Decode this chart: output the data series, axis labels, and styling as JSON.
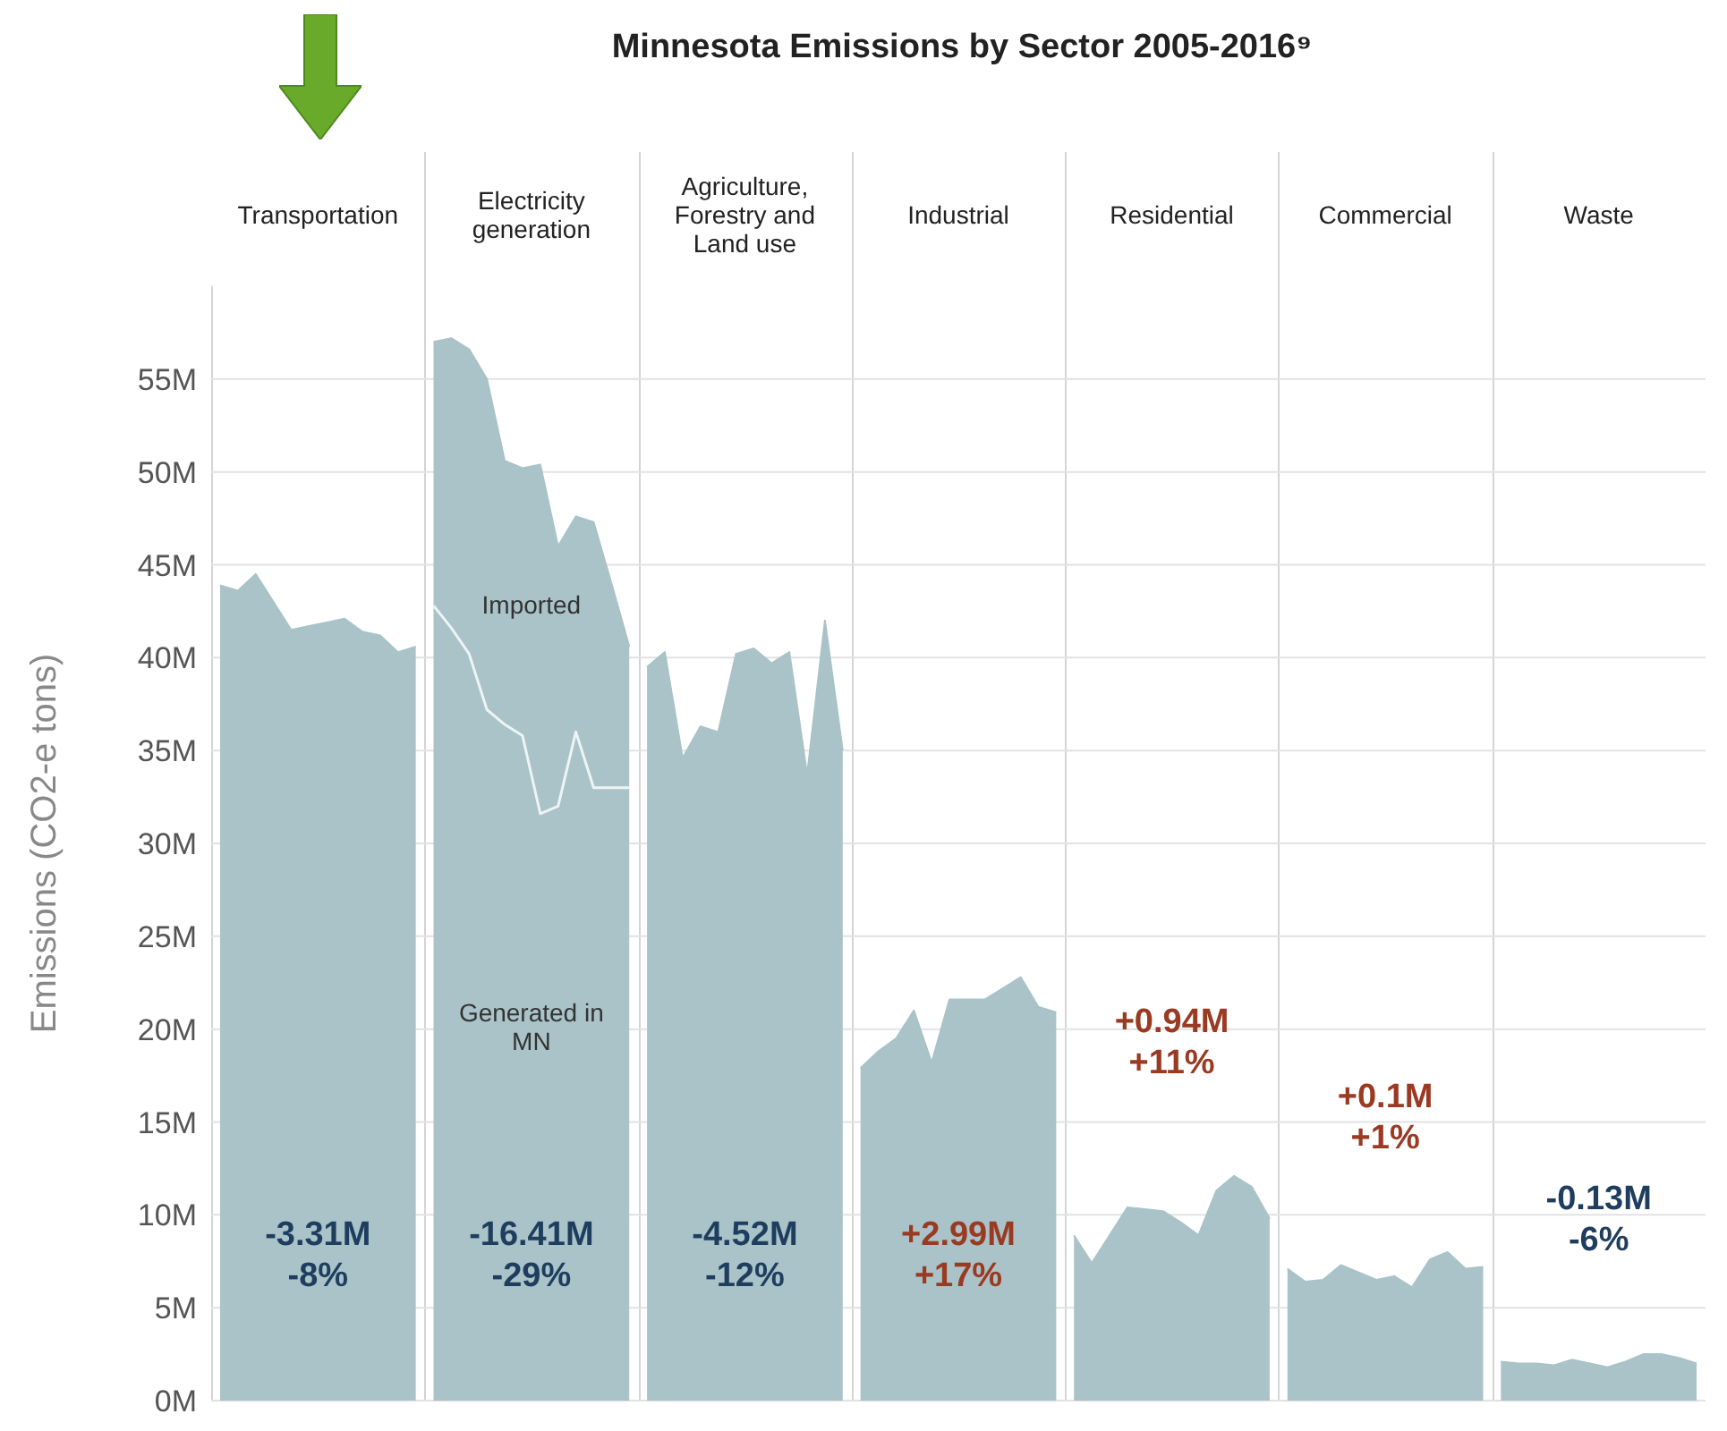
{
  "chart_data": {
    "type": "area",
    "title": "Minnesota Emissions by Sector 2005-2016⁹",
    "ylabel": "Emissions (CO2-e tons)",
    "categories": [
      null,
      null,
      null,
      null,
      null,
      null,
      null,
      null,
      null,
      null,
      null,
      null,
      null,
      null,
      null,
      null,
      null,
      null,
      null,
      null,
      null,
      null,
      null,
      null,
      null,
      null,
      null,
      null,
      null,
      null,
      null,
      null,
      null,
      null,
      null,
      null,
      null,
      null,
      null,
      null,
      null,
      null,
      null,
      null,
      null,
      null,
      null,
      null,
      null,
      null,
      null,
      null,
      null,
      null,
      null,
      null,
      null,
      null,
      null,
      null,
      null,
      null,
      null,
      null,
      null,
      null,
      null,
      null,
      null,
      null,
      null,
      null,
      null,
      null,
      null,
      null,
      null,
      null,
      null,
      null,
      null,
      null,
      null,
      null
    ],
    "ylim": [
      0,
      60
    ],
    "yticks": [
      {
        "value": 0,
        "label": "0M"
      },
      {
        "value": 5,
        "label": "5M"
      },
      {
        "value": 10,
        "label": "10M"
      },
      {
        "value": 15,
        "label": "15M"
      },
      {
        "value": 20,
        "label": "20M"
      },
      {
        "value": 25,
        "label": "25M"
      },
      {
        "value": 30,
        "label": "30M"
      },
      {
        "value": 35,
        "label": "35M"
      },
      {
        "value": 40,
        "label": "40M"
      },
      {
        "value": 45,
        "label": "45M"
      },
      {
        "value": 50,
        "label": "50M"
      },
      {
        "value": 55,
        "label": "55M"
      }
    ],
    "grid": "y",
    "tick_labels": "y",
    "series": [
      {
        "color": "#a9c3c8",
        "values": [
          43.9,
          43.6,
          44.5,
          43,
          41.5,
          41.7,
          41.9,
          42.1,
          41.4,
          41.2,
          40.3,
          40.6,
          null,
          null,
          null,
          null,
          null,
          null,
          null,
          null,
          null,
          null,
          null,
          null,
          null,
          null,
          null,
          null,
          null,
          null,
          null,
          null,
          null,
          null,
          null,
          null,
          null,
          null,
          null,
          null,
          null,
          null,
          null,
          null,
          null,
          null,
          null,
          null,
          null,
          null,
          null,
          null,
          null,
          null,
          null,
          null,
          null,
          null,
          null,
          null,
          null,
          null,
          null,
          null,
          null,
          null,
          null,
          null,
          null,
          null,
          null,
          null,
          null,
          null,
          null,
          null,
          null,
          null,
          null,
          null,
          null,
          null,
          null,
          null
        ]
      },
      {
        "color": "#a9c3c8",
        "values": [
          null,
          null,
          null,
          null,
          null,
          null,
          null,
          null,
          null,
          null,
          null,
          null,
          57,
          57.2,
          56.6,
          55,
          50.6,
          50.2,
          50.4,
          46,
          47.6,
          47.3,
          44,
          40.6,
          null,
          null,
          null,
          null,
          null,
          null,
          null,
          null,
          null,
          null,
          null,
          null,
          null,
          null,
          null,
          null,
          null,
          null,
          null,
          null,
          null,
          null,
          null,
          null,
          null,
          null,
          null,
          null,
          null,
          null,
          null,
          null,
          null,
          null,
          null,
          null,
          null,
          null,
          null,
          null,
          null,
          null,
          null,
          null,
          null,
          null,
          null,
          null,
          null,
          null,
          null,
          null,
          null,
          null,
          null,
          null,
          null,
          null,
          null,
          null
        ]
      },
      {
        "color": "#a9c3c8",
        "values": [
          null,
          null,
          null,
          null,
          null,
          null,
          null,
          null,
          null,
          null,
          null,
          null,
          null,
          null,
          null,
          null,
          null,
          null,
          null,
          null,
          null,
          null,
          null,
          null,
          39.5,
          40.3,
          34.6,
          36.3,
          36,
          40.2,
          40.5,
          39.7,
          40.3,
          33.7,
          42,
          35,
          null,
          null,
          null,
          null,
          null,
          null,
          null,
          null,
          null,
          null,
          null,
          null,
          null,
          null,
          null,
          null,
          null,
          null,
          null,
          null,
          null,
          null,
          null,
          null,
          null,
          null,
          null,
          null,
          null,
          null,
          null,
          null,
          null,
          null,
          null,
          null,
          null,
          null,
          null,
          null,
          null,
          null,
          null,
          null,
          null,
          null,
          null,
          null
        ]
      },
      {
        "color": "#a9c3c8",
        "values": [
          null,
          null,
          null,
          null,
          null,
          null,
          null,
          null,
          null,
          null,
          null,
          null,
          null,
          null,
          null,
          null,
          null,
          null,
          null,
          null,
          null,
          null,
          null,
          null,
          null,
          null,
          null,
          null,
          null,
          null,
          null,
          null,
          null,
          null,
          null,
          null,
          17.9,
          18.8,
          19.5,
          21,
          18.2,
          21.6,
          21.6,
          21.6,
          22.2,
          22.8,
          21.2,
          20.9,
          null,
          null,
          null,
          null,
          null,
          null,
          null,
          null,
          null,
          null,
          null,
          null,
          null,
          null,
          null,
          null,
          null,
          null,
          null,
          null,
          null,
          null,
          null,
          null,
          null,
          null,
          null,
          null,
          null,
          null,
          null,
          null,
          null,
          null,
          null,
          null
        ]
      },
      {
        "color": "#a9c3c8",
        "values": [
          null,
          null,
          null,
          null,
          null,
          null,
          null,
          null,
          null,
          null,
          null,
          null,
          null,
          null,
          null,
          null,
          null,
          null,
          null,
          null,
          null,
          null,
          null,
          null,
          null,
          null,
          null,
          null,
          null,
          null,
          null,
          null,
          null,
          null,
          null,
          null,
          null,
          null,
          null,
          null,
          null,
          null,
          null,
          null,
          null,
          null,
          null,
          null,
          8.9,
          7.4,
          8.9,
          10.4,
          10.3,
          10.2,
          9.6,
          8.9,
          11.3,
          12.1,
          11.5,
          9.8,
          null,
          null,
          null,
          null,
          null,
          null,
          null,
          null,
          null,
          null,
          null,
          null,
          null,
          null,
          null,
          null,
          null,
          null,
          null,
          null,
          null,
          null,
          null,
          null
        ]
      },
      {
        "color": "#a9c3c8",
        "values": [
          null,
          null,
          null,
          null,
          null,
          null,
          null,
          null,
          null,
          null,
          null,
          null,
          null,
          null,
          null,
          null,
          null,
          null,
          null,
          null,
          null,
          null,
          null,
          null,
          null,
          null,
          null,
          null,
          null,
          null,
          null,
          null,
          null,
          null,
          null,
          null,
          null,
          null,
          null,
          null,
          null,
          null,
          null,
          null,
          null,
          null,
          null,
          null,
          null,
          null,
          null,
          null,
          null,
          null,
          null,
          null,
          null,
          null,
          null,
          null,
          7.1,
          6.4,
          6.5,
          7.3,
          6.9,
          6.5,
          6.7,
          6.1,
          7.6,
          8,
          7.1,
          7.2,
          null,
          null,
          null,
          null,
          null,
          null,
          null,
          null,
          null,
          null,
          null,
          null
        ]
      },
      {
        "color": "#a9c3c8",
        "values": [
          null,
          null,
          null,
          null,
          null,
          null,
          null,
          null,
          null,
          null,
          null,
          null,
          null,
          null,
          null,
          null,
          null,
          null,
          null,
          null,
          null,
          null,
          null,
          null,
          null,
          null,
          null,
          null,
          null,
          null,
          null,
          null,
          null,
          null,
          null,
          null,
          null,
          null,
          null,
          null,
          null,
          null,
          null,
          null,
          null,
          null,
          null,
          null,
          null,
          null,
          null,
          null,
          null,
          null,
          null,
          null,
          null,
          null,
          null,
          null,
          null,
          null,
          null,
          null,
          null,
          null,
          null,
          null,
          null,
          null,
          null,
          null,
          2.1,
          2,
          2,
          1.9,
          2.2,
          2,
          1.8,
          2.1,
          2.5,
          2.5,
          2.3,
          2
        ]
      },
      {
        "type": "line",
        "name": "Generated in MN",
        "color": "#eef4f5",
        "values": [
          null,
          null,
          null,
          null,
          null,
          null,
          null,
          null,
          null,
          null,
          null,
          null,
          42.8,
          41.6,
          40.2,
          37.2,
          36.4,
          35.8,
          31.6,
          32,
          36,
          33,
          33,
          33,
          null,
          null,
          null,
          null,
          null,
          null,
          null,
          null,
          null,
          null,
          null,
          null,
          null,
          null,
          null,
          null,
          null,
          null,
          null,
          null,
          null,
          null,
          null,
          null,
          null,
          null,
          null,
          null,
          null,
          null,
          null,
          null,
          null,
          null,
          null,
          null,
          null,
          null,
          null,
          null,
          null,
          null,
          null,
          null,
          null,
          null,
          null,
          null,
          null,
          null,
          null,
          null,
          null,
          null,
          null,
          null,
          null,
          null,
          null,
          null
        ]
      }
    ],
    "annotations": [
      "Transportation",
      "-3.31M",
      "-8%",
      "Electricity generation",
      "-16.41M",
      "-29%",
      "Agriculture, Forestry and Land use",
      "-4.52M",
      "-12%",
      "Industrial",
      "+2.99M",
      "+17%",
      "Residential",
      "+0.94M",
      "+11%",
      "Commercial",
      "+0.1M",
      "+1%",
      "Waste",
      "-0.13M",
      "-6%",
      "Imported"
    ]
  }
}
